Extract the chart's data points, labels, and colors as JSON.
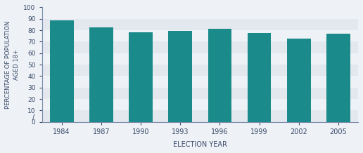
{
  "categories": [
    "1984",
    "1987",
    "1990",
    "1993",
    "1996",
    "1999",
    "2002",
    "2005"
  ],
  "values": [
    88.5,
    82.5,
    78.5,
    79.5,
    81.0,
    77.5,
    72.5,
    77.0
  ],
  "bar_color": "#1a8a8a",
  "ylabel": "PERCENTAGE OF POPULATION\nAGED 18+",
  "xlabel": "ELECTION YEAR",
  "ylim": [
    0,
    100
  ],
  "yticks": [
    0,
    10,
    20,
    30,
    40,
    50,
    60,
    70,
    80,
    90,
    100
  ],
  "stripe_colors": [
    "#e2e8ee",
    "#eef2f6"
  ],
  "axis_color": "#7a8aaa",
  "tick_label_color": "#3a4a6a",
  "label_color": "#3a4a6a",
  "fig_bg": "#eef2f6"
}
